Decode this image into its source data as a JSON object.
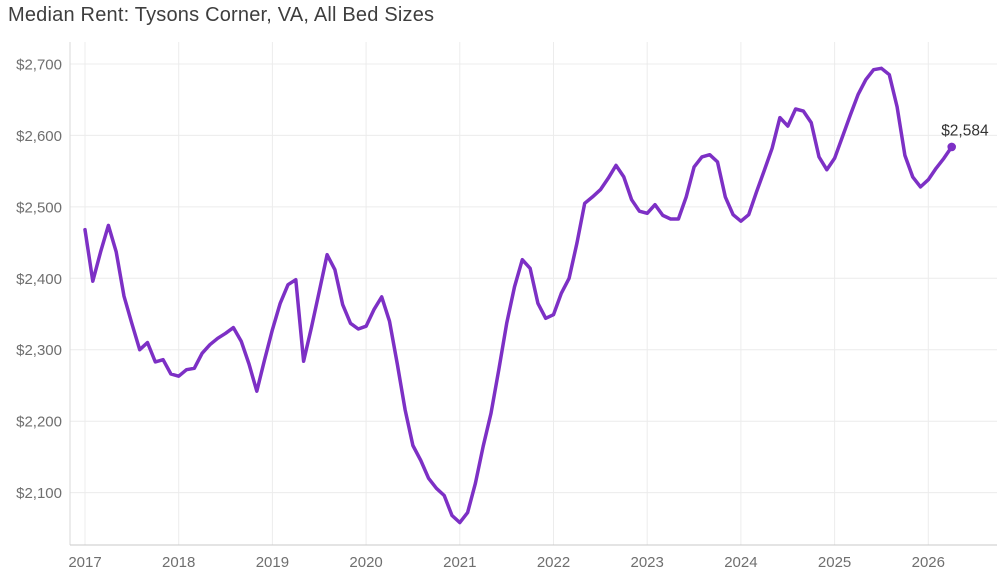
{
  "title": "Median Rent: Tysons Corner, VA, All Bed Sizes",
  "annotation": {
    "label": "$2,584",
    "value": 2584
  },
  "colors": {
    "line": "#7d30c5",
    "grid": "#ececec",
    "axis_bottom": "#c9c9c9",
    "axis_left": "#dadada",
    "tick_text": "#6f6f6f",
    "title_text": "#3e3e3e",
    "annotation_text": "#333333"
  },
  "chart_data": {
    "type": "line",
    "title": "Median Rent: Tysons Corner, VA, All Bed Sizes",
    "series_name": "Median Rent (All Bed Sizes)",
    "x_unit": "month",
    "x_start": "2017-01",
    "x_end": "2026-04",
    "interval": "monthly",
    "grid": true,
    "legend": "none",
    "xlabel": "",
    "ylabel": "",
    "ylim": [
      2027,
      2727
    ],
    "x_tick_labels": [
      "2017",
      "2018",
      "2019",
      "2020",
      "2021",
      "2022",
      "2023",
      "2024",
      "2025",
      "2026"
    ],
    "y_ticks": [
      2700,
      2600,
      2500,
      2400,
      2300,
      2200,
      2100
    ],
    "y_tick_labels": [
      "$2,700",
      "$2,600",
      "$2,500",
      "$2,400",
      "$2,300",
      "$2,200",
      "$2,100"
    ],
    "values": [
      2468,
      2396,
      2437,
      2474,
      2437,
      2375,
      2337,
      2300,
      2310,
      2283,
      2286,
      2266,
      2263,
      2272,
      2274,
      2295,
      2307,
      2316,
      2323,
      2331,
      2312,
      2280,
      2242,
      2286,
      2328,
      2365,
      2391,
      2398,
      2284,
      2331,
      2382,
      2433,
      2412,
      2363,
      2337,
      2329,
      2333,
      2356,
      2374,
      2340,
      2280,
      2216,
      2166,
      2145,
      2120,
      2106,
      2096,
      2068,
      2058,
      2072,
      2113,
      2165,
      2211,
      2272,
      2337,
      2388,
      2426,
      2414,
      2365,
      2344,
      2349,
      2379,
      2400,
      2449,
      2505,
      2514,
      2524,
      2540,
      2558,
      2542,
      2510,
      2494,
      2491,
      2503,
      2488,
      2483,
      2483,
      2514,
      2556,
      2570,
      2573,
      2563,
      2514,
      2489,
      2480,
      2489,
      2521,
      2551,
      2582,
      2625,
      2613,
      2637,
      2634,
      2618,
      2570,
      2552,
      2568,
      2598,
      2628,
      2657,
      2678,
      2692,
      2694,
      2685,
      2640,
      2572,
      2542,
      2528,
      2538,
      2554,
      2568,
      2584
    ],
    "last_point_label": "$2,584",
    "last_point_value": 2584
  }
}
